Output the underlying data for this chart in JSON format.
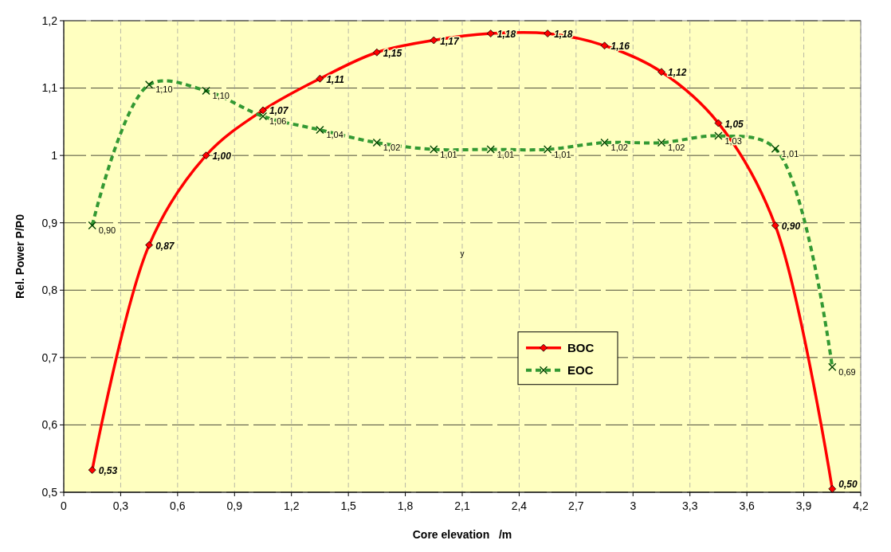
{
  "chart_data": {
    "type": "line",
    "xlabel": "Core elevation   /m",
    "ylabel": "Rel. Power P/P0",
    "x": [
      0.15,
      0.45,
      0.75,
      1.05,
      1.35,
      1.65,
      1.95,
      2.25,
      2.55,
      2.85,
      3.15,
      3.45,
      3.75,
      4.05
    ],
    "series": [
      {
        "name": "BOC",
        "color": "#ff0000",
        "marker": "diamond",
        "line_style": "solid",
        "values": [
          0.533,
          0.867,
          1.0,
          1.067,
          1.114,
          1.153,
          1.171,
          1.181,
          1.181,
          1.163,
          1.124,
          1.048,
          0.896,
          0.505
        ],
        "value_labels": [
          "0,53",
          "0,87",
          "1,00",
          "1,07",
          "1,11",
          "1,15",
          "1,17",
          "1,18",
          "1,18",
          "1,16",
          "1,12",
          "1,05",
          "0,90",
          "0,50"
        ]
      },
      {
        "name": "EOC",
        "color": "#339933",
        "marker": "cross",
        "line_style": "dashed",
        "values": [
          0.896,
          1.105,
          1.096,
          1.058,
          1.038,
          1.019,
          1.009,
          1.009,
          1.009,
          1.019,
          1.019,
          1.029,
          1.01,
          0.686
        ],
        "value_labels": [
          "0,90",
          "1,10",
          "1,10",
          "1,06",
          "1,04",
          "1,02",
          "1,01",
          "1,01",
          "1,01",
          "1,02",
          "1,02",
          "1,03",
          "1,01",
          "0,69"
        ]
      }
    ],
    "xlim": [
      0,
      4.2
    ],
    "xticks": [
      0,
      {
        "value": 0.3,
        "label": "0,3"
      },
      {
        "value": 0.6,
        "label": "0,6"
      },
      {
        "value": 0.9,
        "label": "0,9"
      },
      {
        "value": 1.2,
        "label": "1,2"
      },
      {
        "value": 1.5,
        "label": "1,5"
      },
      {
        "value": 1.8,
        "label": "1,8"
      },
      {
        "value": 2.1,
        "label": "2,1"
      },
      {
        "value": 2.4,
        "label": "2,4"
      },
      {
        "value": 2.7,
        "label": "2,7"
      },
      3,
      {
        "value": 3.3,
        "label": "3,3"
      },
      {
        "value": 3.6,
        "label": "3,6"
      },
      {
        "value": 3.9,
        "label": "3,9"
      },
      {
        "value": 4.2,
        "label": "4,2"
      }
    ],
    "ylim": [
      0.5,
      1.2
    ],
    "yticks": [
      {
        "value": 0.5,
        "label": "0,5"
      },
      {
        "value": 0.6,
        "label": "0,6"
      },
      {
        "value": 0.7,
        "label": "0,7"
      },
      {
        "value": 0.8,
        "label": "0,8"
      },
      {
        "value": 0.9,
        "label": "0,9"
      },
      1,
      {
        "value": 1.1,
        "label": "1,1"
      },
      {
        "value": 1.2,
        "label": "1,2"
      }
    ],
    "grid": true,
    "legend": "center",
    "annotations": [
      "y"
    ]
  }
}
